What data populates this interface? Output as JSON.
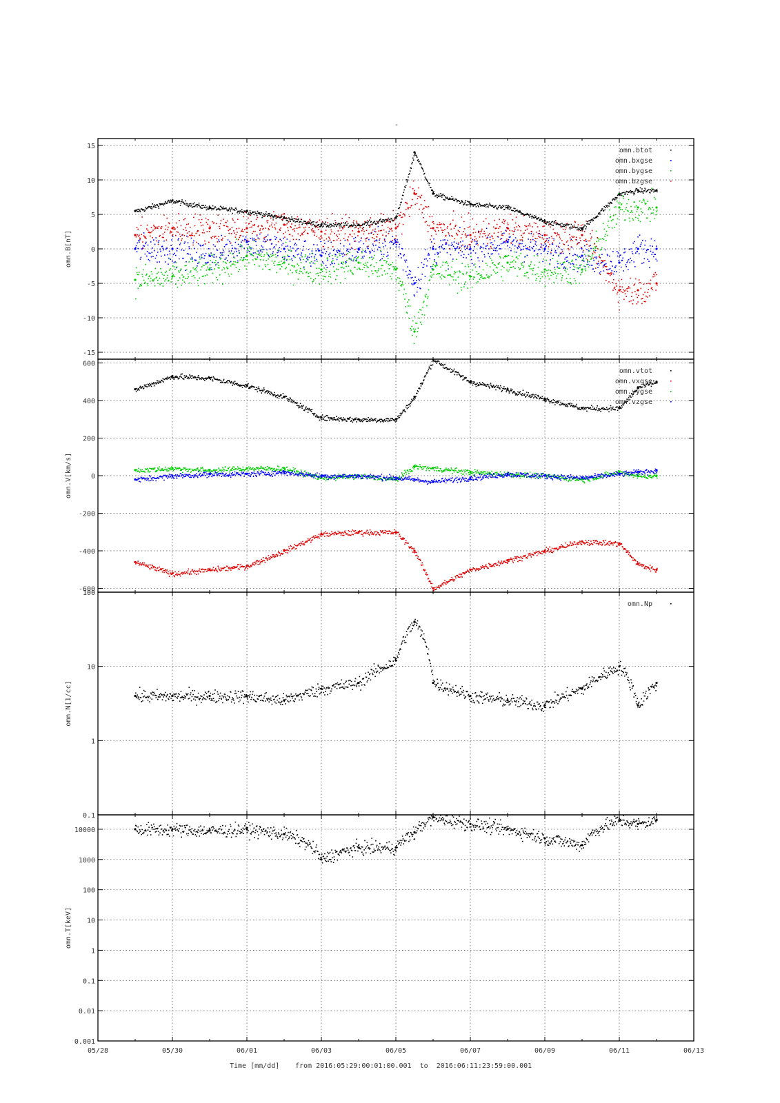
{
  "figure": {
    "title": "-",
    "x_axis": {
      "label": "Time [mm/dd]",
      "range_text": "from 2016:05:29:00:01:00.001  to  2016:06:11:23:59:00.001",
      "ticks": [
        "05/28",
        "05/30",
        "06/01",
        "06/03",
        "06/05",
        "06/07",
        "06/09",
        "06/11",
        "06/13"
      ]
    }
  },
  "chart_data": [
    {
      "type": "scatter",
      "ylabel": "omn.B[nT]",
      "yscale": "linear",
      "ylim": [
        -16,
        16
      ],
      "yticks": [
        -15,
        -10,
        -5,
        0,
        5,
        10,
        15
      ],
      "ytick_labels": [
        "-15",
        "-10",
        "-5",
        "0",
        "5",
        "10",
        "15"
      ],
      "xlim": [
        "2016-05-28",
        "2016-06-13"
      ],
      "grid": true,
      "legend": "top-right",
      "x": [
        "2016-05-29",
        "2016-05-30",
        "2016-05-31",
        "2016-06-01",
        "2016-06-02",
        "2016-06-03",
        "2016-06-04",
        "2016-06-05",
        "2016-06-05T12",
        "2016-06-06",
        "2016-06-07",
        "2016-06-08",
        "2016-06-09",
        "2016-06-10",
        "2016-06-11",
        "2016-06-11T12",
        "2016-06-12"
      ],
      "series": [
        {
          "name": "omn.btot",
          "color": "#000000",
          "values": [
            5.5,
            7,
            6,
            5.5,
            4.5,
            3.5,
            3.5,
            4.5,
            14,
            8,
            6.5,
            6,
            4,
            3,
            8,
            8.5,
            8.5
          ]
        },
        {
          "name": "omn.bxgse",
          "color": "#0000ff",
          "values": [
            0,
            0,
            -1,
            1,
            0,
            -1,
            0,
            1,
            -5,
            0,
            0,
            1,
            0,
            -1,
            -2,
            0,
            0
          ]
        },
        {
          "name": "omn.bygse",
          "color": "#00cc00",
          "values": [
            -4.5,
            -4,
            -3,
            -1,
            -2,
            -3,
            -2,
            -3,
            -12,
            -3,
            -4,
            -2,
            -3,
            -3,
            6,
            6,
            6
          ]
        },
        {
          "name": "omn.bzgse",
          "color": "#dd0000",
          "values": [
            2,
            3,
            3,
            3,
            3.5,
            2.5,
            2.5,
            3,
            8,
            3,
            2,
            3,
            2,
            2,
            -6,
            -6,
            -5
          ]
        }
      ]
    },
    {
      "type": "scatter",
      "ylabel": "omn.V[km/s]",
      "yscale": "linear",
      "ylim": [
        -620,
        620
      ],
      "yticks": [
        -600,
        -400,
        -200,
        0,
        200,
        400,
        600
      ],
      "ytick_labels": [
        "-600",
        "-400",
        "-200",
        "0",
        "200",
        "400",
        "600"
      ],
      "xlim": [
        "2016-05-28",
        "2016-06-13"
      ],
      "grid": true,
      "legend": "top-right",
      "x": [
        "2016-05-29",
        "2016-05-30",
        "2016-05-31",
        "2016-06-01",
        "2016-06-02",
        "2016-06-03",
        "2016-06-04",
        "2016-06-05",
        "2016-06-05T12",
        "2016-06-06",
        "2016-06-07",
        "2016-06-08",
        "2016-06-09",
        "2016-06-10",
        "2016-06-11",
        "2016-06-11T12",
        "2016-06-12"
      ],
      "series": [
        {
          "name": "omn.vtot",
          "color": "#000000",
          "values": [
            460,
            530,
            520,
            480,
            420,
            310,
            300,
            300,
            420,
            620,
            500,
            460,
            410,
            360,
            360,
            470,
            500
          ]
        },
        {
          "name": "omn.vxgse",
          "color": "#dd0000",
          "values": [
            -460,
            -520,
            -500,
            -480,
            -400,
            -310,
            -300,
            -300,
            -400,
            -600,
            -500,
            -450,
            -400,
            -350,
            -360,
            -470,
            -500
          ]
        },
        {
          "name": "omn.vygse",
          "color": "#00cc00",
          "values": [
            30,
            40,
            30,
            40,
            40,
            -10,
            0,
            -20,
            50,
            40,
            20,
            10,
            0,
            -20,
            20,
            0,
            0
          ]
        },
        {
          "name": "omn.vzgse",
          "color": "#0000ff",
          "values": [
            -20,
            0,
            10,
            10,
            20,
            0,
            0,
            -10,
            -20,
            -30,
            -10,
            10,
            0,
            -10,
            10,
            20,
            30
          ]
        }
      ]
    },
    {
      "type": "scatter",
      "ylabel": "omn.N[1/cc]",
      "yscale": "log",
      "ylim": [
        0.1,
        100
      ],
      "yticks": [
        0.1,
        1,
        10,
        100
      ],
      "ytick_labels": [
        "0.1",
        "1",
        "10",
        "100"
      ],
      "xlim": [
        "2016-05-28",
        "2016-06-13"
      ],
      "grid": true,
      "legend": "top-right",
      "x": [
        "2016-05-29",
        "2016-05-30",
        "2016-05-31",
        "2016-06-01",
        "2016-06-02",
        "2016-06-03",
        "2016-06-04",
        "2016-06-05",
        "2016-06-05T12",
        "2016-06-06",
        "2016-06-07",
        "2016-06-08",
        "2016-06-09",
        "2016-06-10",
        "2016-06-11",
        "2016-06-11T12",
        "2016-06-12"
      ],
      "series": [
        {
          "name": "omn.Np",
          "color": "#000000",
          "values": [
            4,
            4,
            4,
            4,
            3.5,
            5,
            6,
            12,
            40,
            6,
            4,
            3.5,
            3,
            5,
            10,
            3,
            6
          ]
        }
      ]
    },
    {
      "type": "scatter",
      "ylabel": "omn.T[keV]",
      "yscale": "log",
      "ylim": [
        0.001,
        30000
      ],
      "yticks": [
        0.001,
        0.01,
        0.1,
        1,
        10,
        100,
        1000,
        10000
      ],
      "ytick_labels": [
        "0.001",
        "0.01",
        "0.1",
        "1",
        "10",
        "100",
        "1000",
        "10000"
      ],
      "xlim": [
        "2016-05-28",
        "2016-06-13"
      ],
      "grid": true,
      "legend": "none",
      "x": [
        "2016-05-29",
        "2016-05-30",
        "2016-05-31",
        "2016-06-01",
        "2016-06-02",
        "2016-06-03",
        "2016-06-04",
        "2016-06-05",
        "2016-06-05T12",
        "2016-06-06",
        "2016-06-07",
        "2016-06-08",
        "2016-06-09",
        "2016-06-10",
        "2016-06-11",
        "2016-06-11T12",
        "2016-06-12"
      ],
      "series": [
        {
          "name": "omn.T",
          "color": "#000000",
          "values": [
            10000,
            10000,
            9000,
            10000,
            7000,
            1000,
            2500,
            2500,
            8000,
            25000,
            15000,
            10000,
            5000,
            3000,
            20000,
            15000,
            20000
          ]
        }
      ]
    }
  ]
}
